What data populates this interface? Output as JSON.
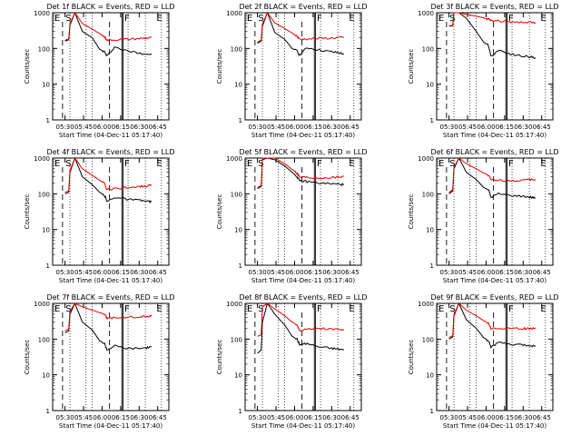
{
  "figure": {
    "background": "#ffffff"
  },
  "colors": {
    "events": "#000000",
    "lld": "#e00000",
    "axes": "#000000"
  },
  "chart_data": [
    {
      "type": "line",
      "title": "Det 1f BLACK = Events, RED = LLD",
      "xlabel": "Start Time (04-Dec-11 05:17:40)",
      "ylabel": "Counts/sec",
      "xticks": [
        "05:30",
        "05:45",
        "06:00",
        "06:15",
        "06:30",
        "06:45"
      ],
      "yticks": [
        "1",
        "10",
        "100",
        "1000"
      ],
      "ylog": true,
      "ylim": [
        1,
        1000
      ],
      "markers": [
        "E",
        "S",
        "F",
        "E"
      ],
      "series": [
        {
          "name": "Events",
          "color": "#000000",
          "x": [
            0,
            3,
            4,
            8,
            14,
            22,
            28,
            32,
            34,
            40,
            50,
            60,
            66,
            70
          ],
          "y": [
            160,
            175,
            450,
            1000,
            300,
            200,
            95,
            80,
            60,
            110,
            85,
            75,
            70,
            68
          ]
        },
        {
          "name": "LLD",
          "color": "#e00000",
          "x": [
            0,
            3,
            4,
            8,
            14,
            22,
            28,
            32,
            34,
            40,
            50,
            60,
            66,
            70
          ],
          "y": [
            170,
            185,
            500,
            1000,
            500,
            350,
            260,
            210,
            170,
            175,
            180,
            190,
            195,
            200
          ]
        }
      ]
    },
    {
      "type": "line",
      "title": "Det 2f BLACK = Events, RED = LLD",
      "xlabel": "Start Time (04-Dec-11 05:17:40)",
      "ylabel": "Counts/sec",
      "xticks": [
        "05:30",
        "05:45",
        "06:00",
        "06:15",
        "06:30",
        "06:45"
      ],
      "yticks": [
        "1",
        "10",
        "100",
        "1000"
      ],
      "ylog": true,
      "ylim": [
        1,
        1000
      ],
      "markers": [
        "E",
        "S",
        "F",
        "E"
      ],
      "series": [
        {
          "name": "Events",
          "color": "#000000",
          "x": [
            0,
            3,
            4,
            8,
            14,
            22,
            28,
            32,
            34,
            40,
            50,
            60,
            66,
            70
          ],
          "y": [
            140,
            160,
            420,
            1000,
            280,
            180,
            100,
            85,
            65,
            105,
            90,
            80,
            75,
            70
          ]
        },
        {
          "name": "LLD",
          "color": "#e00000",
          "x": [
            0,
            3,
            4,
            8,
            14,
            22,
            28,
            32,
            34,
            40,
            50,
            60,
            66,
            70
          ],
          "y": [
            150,
            170,
            480,
            1000,
            520,
            360,
            270,
            220,
            180,
            185,
            190,
            195,
            200,
            205
          ]
        }
      ]
    },
    {
      "type": "line",
      "title": "Det 3f BLACK = Events, RED = LLD",
      "xlabel": "Start Time (04-Dec-11 05:17:40)",
      "ylabel": "Counts/sec",
      "xticks": [
        "05:30",
        "05:45",
        "06:00",
        "06:15",
        "06:30",
        "06:45"
      ],
      "yticks": [
        "1",
        "10",
        "100",
        "1000"
      ],
      "ylog": true,
      "ylim": [
        1,
        1000
      ],
      "markers": [
        "E",
        "S",
        "F",
        "E"
      ],
      "series": [
        {
          "name": "Events",
          "color": "#000000",
          "x": [
            0,
            3,
            4,
            8,
            14,
            22,
            28,
            32,
            34,
            40,
            50,
            60,
            66,
            70
          ],
          "y": [
            420,
            430,
            1000,
            1000,
            700,
            300,
            150,
            120,
            60,
            90,
            70,
            60,
            58,
            55
          ]
        },
        {
          "name": "LLD",
          "color": "#e00000",
          "x": [
            0,
            3,
            4,
            8,
            14,
            22,
            28,
            32,
            34,
            40,
            50,
            60,
            66,
            70
          ],
          "y": [
            430,
            440,
            1000,
            1000,
            900,
            800,
            720,
            650,
            600,
            580,
            560,
            540,
            530,
            520
          ]
        }
      ]
    },
    {
      "type": "line",
      "title": "Det 4f BLACK = Events, RED = LLD",
      "xlabel": "Start Time (04-Dec-11 05:17:40)",
      "ylabel": "Counts/sec",
      "xticks": [
        "05:30",
        "05:45",
        "06:00",
        "06:15",
        "06:30",
        "06:45"
      ],
      "yticks": [
        "1",
        "10",
        "100",
        "1000"
      ],
      "ylog": true,
      "ylim": [
        1,
        1000
      ],
      "markers": [
        "E",
        "S",
        "F",
        "E"
      ],
      "series": [
        {
          "name": "Events",
          "color": "#000000",
          "x": [
            0,
            3,
            4,
            8,
            14,
            22,
            28,
            32,
            34,
            40,
            50,
            60,
            66,
            70
          ],
          "y": [
            100,
            110,
            400,
            1000,
            300,
            180,
            110,
            90,
            60,
            80,
            70,
            65,
            62,
            60
          ]
        },
        {
          "name": "LLD",
          "color": "#e00000",
          "x": [
            0,
            3,
            4,
            8,
            14,
            22,
            28,
            32,
            34,
            40,
            50,
            60,
            66,
            70
          ],
          "y": [
            110,
            120,
            450,
            1000,
            500,
            330,
            240,
            190,
            130,
            140,
            150,
            160,
            165,
            170
          ]
        }
      ]
    },
    {
      "type": "line",
      "title": "Det 5f BLACK = Events, RED = LLD",
      "xlabel": "Start Time (04-Dec-11 05:17:40)",
      "ylabel": "Counts/sec",
      "xticks": [
        "05:30",
        "05:45",
        "06:00",
        "06:15",
        "06:30",
        "06:45"
      ],
      "yticks": [
        "1",
        "10",
        "100",
        "1000"
      ],
      "ylog": true,
      "ylim": [
        1,
        1000
      ],
      "markers": [
        "E",
        "S",
        "F",
        "E"
      ],
      "series": [
        {
          "name": "Events",
          "color": "#000000",
          "x": [
            0,
            3,
            4,
            8,
            14,
            22,
            28,
            32,
            34,
            40,
            50,
            60,
            66,
            70
          ],
          "y": [
            140,
            160,
            900,
            1000,
            900,
            600,
            400,
            300,
            230,
            220,
            200,
            190,
            185,
            180
          ]
        },
        {
          "name": "LLD",
          "color": "#e00000",
          "x": [
            0,
            3,
            4,
            8,
            14,
            22,
            28,
            32,
            34,
            40,
            50,
            60,
            66,
            70
          ],
          "y": [
            150,
            170,
            1000,
            1000,
            1000,
            700,
            480,
            380,
            300,
            290,
            280,
            290,
            300,
            310
          ]
        }
      ]
    },
    {
      "type": "line",
      "title": "Det 6f BLACK = Events, RED = LLD",
      "xlabel": "Start Time (04-Dec-11 05:17:40)",
      "ylabel": "Counts/sec",
      "xticks": [
        "05:30",
        "05:45",
        "06:00",
        "06:15",
        "06:30",
        "06:45"
      ],
      "yticks": [
        "1",
        "10",
        "100",
        "1000"
      ],
      "ylog": true,
      "ylim": [
        1,
        1000
      ],
      "markers": [
        "E",
        "S",
        "F",
        "E"
      ],
      "series": [
        {
          "name": "Events",
          "color": "#000000",
          "x": [
            0,
            3,
            4,
            8,
            14,
            22,
            28,
            32,
            34,
            40,
            50,
            60,
            66,
            70
          ],
          "y": [
            100,
            120,
            500,
            1000,
            400,
            250,
            150,
            130,
            80,
            100,
            90,
            85,
            80,
            78
          ]
        },
        {
          "name": "LLD",
          "color": "#e00000",
          "x": [
            0,
            3,
            4,
            8,
            14,
            22,
            28,
            32,
            34,
            40,
            50,
            60,
            66,
            70
          ],
          "y": [
            110,
            130,
            550,
            1000,
            700,
            500,
            380,
            330,
            250,
            240,
            230,
            240,
            245,
            250
          ]
        }
      ]
    },
    {
      "type": "line",
      "title": "Det 7f BLACK = Events, RED = LLD",
      "xlabel": "Start Time (04-Dec-11 05:17:40)",
      "ylabel": "Counts/sec",
      "xticks": [
        "05:30",
        "05:45",
        "06:00",
        "06:15",
        "06:30",
        "06:45"
      ],
      "yticks": [
        "1",
        "10",
        "100",
        "1000"
      ],
      "ylog": true,
      "ylim": [
        1,
        1000
      ],
      "markers": [
        "E",
        "S",
        "F",
        "E"
      ],
      "series": [
        {
          "name": "Events",
          "color": "#000000",
          "x": [
            0,
            3,
            4,
            8,
            14,
            22,
            28,
            32,
            34,
            40,
            50,
            60,
            66,
            70
          ],
          "y": [
            150,
            170,
            500,
            1000,
            300,
            180,
            90,
            75,
            50,
            65,
            55,
            55,
            58,
            60
          ]
        },
        {
          "name": "LLD",
          "color": "#e00000",
          "x": [
            0,
            3,
            4,
            8,
            14,
            22,
            28,
            32,
            34,
            40,
            50,
            60,
            66,
            70
          ],
          "y": [
            170,
            190,
            600,
            1000,
            800,
            650,
            550,
            500,
            380,
            400,
            410,
            420,
            430,
            440
          ]
        }
      ]
    },
    {
      "type": "line",
      "title": "Det 8f BLACK = Events, RED = LLD",
      "xlabel": "Start Time (04-Dec-11 05:17:40)",
      "ylabel": "Counts/sec",
      "xticks": [
        "05:30",
        "05:45",
        "06:00",
        "06:15",
        "06:30",
        "06:45"
      ],
      "yticks": [
        "1",
        "10",
        "100",
        "1000"
      ],
      "ylog": true,
      "ylim": [
        1,
        1000
      ],
      "markers": [
        "E",
        "S",
        "F",
        "E"
      ],
      "series": [
        {
          "name": "Events",
          "color": "#000000",
          "x": [
            0,
            3,
            4,
            8,
            14,
            22,
            28,
            32,
            34,
            40,
            50,
            60,
            66,
            70
          ],
          "y": [
            40,
            50,
            300,
            1000,
            500,
            250,
            120,
            100,
            70,
            75,
            60,
            55,
            52,
            50
          ]
        },
        {
          "name": "LLD",
          "color": "#e00000",
          "x": [
            0,
            3,
            4,
            8,
            14,
            22,
            28,
            32,
            34,
            40,
            50,
            60,
            66,
            70
          ],
          "y": [
            120,
            130,
            800,
            1000,
            700,
            450,
            300,
            250,
            180,
            190,
            200,
            190,
            185,
            180
          ]
        }
      ]
    },
    {
      "type": "line",
      "title": "Det 9f BLACK = Events, RED = LLD",
      "xlabel": "Start Time (04-Dec-11 05:17:40)",
      "ylabel": "Counts/sec",
      "xticks": [
        "05:30",
        "05:45",
        "06:00",
        "06:15",
        "06:30",
        "06:45"
      ],
      "yticks": [
        "1",
        "10",
        "100",
        "1000"
      ],
      "ylog": true,
      "ylim": [
        1,
        1000
      ],
      "markers": [
        "E",
        "S",
        "F",
        "E"
      ],
      "series": [
        {
          "name": "Events",
          "color": "#000000",
          "x": [
            0,
            3,
            4,
            8,
            14,
            22,
            28,
            32,
            34,
            40,
            50,
            60,
            66,
            70
          ],
          "y": [
            100,
            115,
            450,
            1000,
            350,
            200,
            110,
            90,
            60,
            80,
            70,
            68,
            66,
            65
          ]
        },
        {
          "name": "LLD",
          "color": "#e00000",
          "x": [
            0,
            3,
            4,
            8,
            14,
            22,
            28,
            32,
            34,
            40,
            50,
            60,
            66,
            70
          ],
          "y": [
            110,
            125,
            500,
            1000,
            650,
            450,
            330,
            280,
            200,
            200,
            195,
            195,
            200,
            205
          ]
        }
      ]
    }
  ]
}
